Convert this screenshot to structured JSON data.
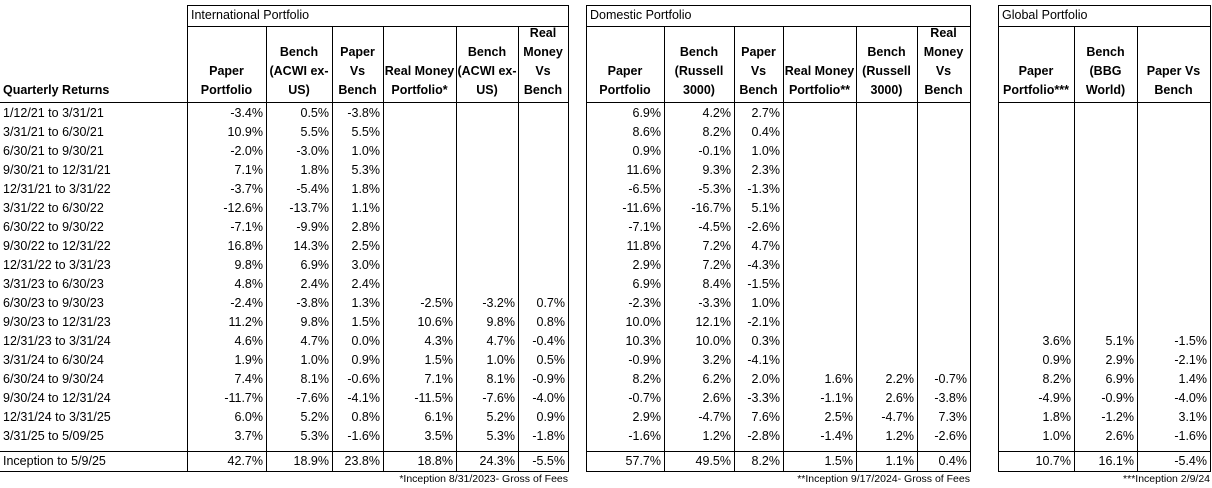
{
  "sections": {
    "international": "International Portfolio",
    "domestic": "Domestic Portfolio",
    "global": "Global Portfolio"
  },
  "headers": {
    "label": "Quarterly Returns",
    "international": [
      "Paper Portfolio",
      "Bench (ACWI ex-US)",
      "Paper Vs Bench",
      "Real Money Portfolio*",
      "Bench (ACWI ex-US)",
      "Real Money Vs Bench"
    ],
    "domestic": [
      "Paper Portfolio",
      "Bench (Russell 3000)",
      "Paper Vs Bench",
      "Real Money Portfolio**",
      "Bench (Russell 3000)",
      "Real Money Vs Bench"
    ],
    "global": [
      "Paper Portfolio***",
      "Bench (BBG World)",
      "Paper Vs Bench"
    ]
  },
  "rows": [
    {
      "label": "1/12/21 to 3/31/21",
      "intl": [
        "-3.4%",
        "0.5%",
        "-3.8%",
        "",
        "",
        ""
      ],
      "dom": [
        "6.9%",
        "4.2%",
        "2.7%",
        "",
        "",
        ""
      ],
      "glob": [
        "",
        "",
        ""
      ]
    },
    {
      "label": "3/31/21 to 6/30/21",
      "intl": [
        "10.9%",
        "5.5%",
        "5.5%",
        "",
        "",
        ""
      ],
      "dom": [
        "8.6%",
        "8.2%",
        "0.4%",
        "",
        "",
        ""
      ],
      "glob": [
        "",
        "",
        ""
      ]
    },
    {
      "label": "6/30/21 to 9/30/21",
      "intl": [
        "-2.0%",
        "-3.0%",
        "1.0%",
        "",
        "",
        ""
      ],
      "dom": [
        "0.9%",
        "-0.1%",
        "1.0%",
        "",
        "",
        ""
      ],
      "glob": [
        "",
        "",
        ""
      ]
    },
    {
      "label": "9/30/21 to 12/31/21",
      "intl": [
        "7.1%",
        "1.8%",
        "5.3%",
        "",
        "",
        ""
      ],
      "dom": [
        "11.6%",
        "9.3%",
        "2.3%",
        "",
        "",
        ""
      ],
      "glob": [
        "",
        "",
        ""
      ]
    },
    {
      "label": "12/31/21 to 3/31/22",
      "intl": [
        "-3.7%",
        "-5.4%",
        "1.8%",
        "",
        "",
        ""
      ],
      "dom": [
        "-6.5%",
        "-5.3%",
        "-1.3%",
        "",
        "",
        ""
      ],
      "glob": [
        "",
        "",
        ""
      ]
    },
    {
      "label": "3/31/22 to 6/30/22",
      "intl": [
        "-12.6%",
        "-13.7%",
        "1.1%",
        "",
        "",
        ""
      ],
      "dom": [
        "-11.6%",
        "-16.7%",
        "5.1%",
        "",
        "",
        ""
      ],
      "glob": [
        "",
        "",
        ""
      ]
    },
    {
      "label": "6/30/22 to 9/30/22",
      "intl": [
        "-7.1%",
        "-9.9%",
        "2.8%",
        "",
        "",
        ""
      ],
      "dom": [
        "-7.1%",
        "-4.5%",
        "-2.6%",
        "",
        "",
        ""
      ],
      "glob": [
        "",
        "",
        ""
      ]
    },
    {
      "label": "9/30/22 to 12/31/22",
      "intl": [
        "16.8%",
        "14.3%",
        "2.5%",
        "",
        "",
        ""
      ],
      "dom": [
        "11.8%",
        "7.2%",
        "4.7%",
        "",
        "",
        ""
      ],
      "glob": [
        "",
        "",
        ""
      ]
    },
    {
      "label": "12/31/22 to 3/31/23",
      "intl": [
        "9.8%",
        "6.9%",
        "3.0%",
        "",
        "",
        ""
      ],
      "dom": [
        "2.9%",
        "7.2%",
        "-4.3%",
        "",
        "",
        ""
      ],
      "glob": [
        "",
        "",
        ""
      ]
    },
    {
      "label": "3/31/23 to 6/30/23",
      "intl": [
        "4.8%",
        "2.4%",
        "2.4%",
        "",
        "",
        ""
      ],
      "dom": [
        "6.9%",
        "8.4%",
        "-1.5%",
        "",
        "",
        ""
      ],
      "glob": [
        "",
        "",
        ""
      ]
    },
    {
      "label": "6/30/23 to 9/30/23",
      "intl": [
        "-2.4%",
        "-3.8%",
        "1.3%",
        "-2.5%",
        "-3.2%",
        "0.7%"
      ],
      "dom": [
        "-2.3%",
        "-3.3%",
        "1.0%",
        "",
        "",
        ""
      ],
      "glob": [
        "",
        "",
        ""
      ]
    },
    {
      "label": "9/30/23 to 12/31/23",
      "intl": [
        "11.2%",
        "9.8%",
        "1.5%",
        "10.6%",
        "9.8%",
        "0.8%"
      ],
      "dom": [
        "10.0%",
        "12.1%",
        "-2.1%",
        "",
        "",
        ""
      ],
      "glob": [
        "",
        "",
        ""
      ]
    },
    {
      "label": "12/31/23 to 3/31/24",
      "intl": [
        "4.6%",
        "4.7%",
        "0.0%",
        "4.3%",
        "4.7%",
        "-0.4%"
      ],
      "dom": [
        "10.3%",
        "10.0%",
        "0.3%",
        "",
        "",
        ""
      ],
      "glob": [
        "3.6%",
        "5.1%",
        "-1.5%"
      ]
    },
    {
      "label": "3/31/24 to 6/30/24",
      "intl": [
        "1.9%",
        "1.0%",
        "0.9%",
        "1.5%",
        "1.0%",
        "0.5%"
      ],
      "dom": [
        "-0.9%",
        "3.2%",
        "-4.1%",
        "",
        "",
        ""
      ],
      "glob": [
        "0.9%",
        "2.9%",
        "-2.1%"
      ]
    },
    {
      "label": "6/30/24 to 9/30/24",
      "intl": [
        "7.4%",
        "8.1%",
        "-0.6%",
        "7.1%",
        "8.1%",
        "-0.9%"
      ],
      "dom": [
        "8.2%",
        "6.2%",
        "2.0%",
        "1.6%",
        "2.2%",
        "-0.7%"
      ],
      "glob": [
        "8.2%",
        "6.9%",
        "1.4%"
      ]
    },
    {
      "label": "9/30/24 to 12/31/24",
      "intl": [
        "-11.7%",
        "-7.6%",
        "-4.1%",
        "-11.5%",
        "-7.6%",
        "-4.0%"
      ],
      "dom": [
        "-0.7%",
        "2.6%",
        "-3.3%",
        "-1.1%",
        "2.6%",
        "-3.8%"
      ],
      "glob": [
        "-4.9%",
        "-0.9%",
        "-4.0%"
      ]
    },
    {
      "label": "12/31/24 to 3/31/25",
      "intl": [
        "6.0%",
        "5.2%",
        "0.8%",
        "6.1%",
        "5.2%",
        "0.9%"
      ],
      "dom": [
        "2.9%",
        "-4.7%",
        "7.6%",
        "2.5%",
        "-4.7%",
        "7.3%"
      ],
      "glob": [
        "1.8%",
        "-1.2%",
        "3.1%"
      ]
    },
    {
      "label": "3/31/25 to 5/09/25",
      "intl": [
        "3.7%",
        "5.3%",
        "-1.6%",
        "3.5%",
        "5.3%",
        "-1.8%"
      ],
      "dom": [
        "-1.6%",
        "1.2%",
        "-2.8%",
        "-1.4%",
        "1.2%",
        "-2.6%"
      ],
      "glob": [
        "1.0%",
        "2.6%",
        "-1.6%"
      ]
    }
  ],
  "total": {
    "label": "Inception to 5/9/25",
    "intl": [
      "42.7%",
      "18.9%",
      "23.8%",
      "18.8%",
      "24.3%",
      "-5.5%"
    ],
    "dom": [
      "57.7%",
      "49.5%",
      "8.2%",
      "1.5%",
      "1.1%",
      "0.4%"
    ],
    "glob": [
      "10.7%",
      "16.1%",
      "-5.4%"
    ]
  },
  "footnotes": {
    "international": "*Inception 8/31/2023- Gross of Fees",
    "domestic": "**Inception 9/17/2024- Gross of Fees",
    "global": "***Inception 2/9/24"
  }
}
